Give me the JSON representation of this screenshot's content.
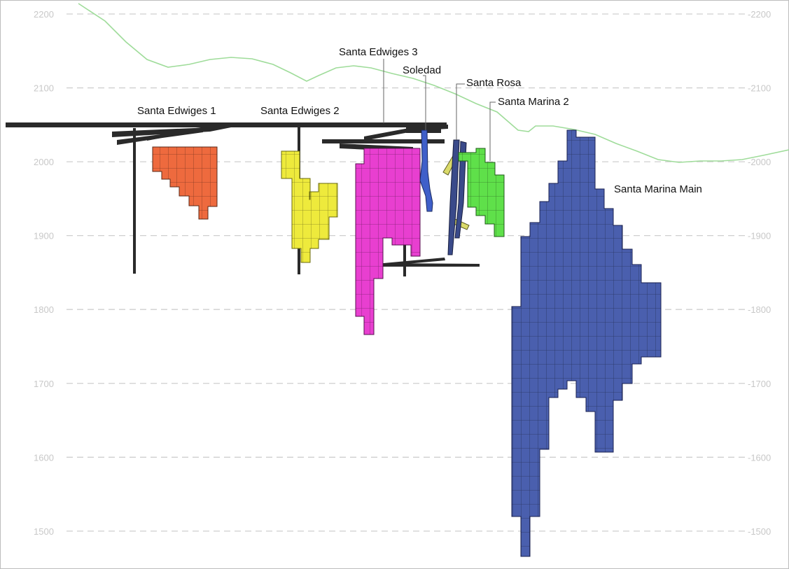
{
  "elevation_axis": {
    "ticks": [
      2200,
      2100,
      2000,
      1900,
      1800,
      1700,
      1600,
      1500
    ],
    "left_labels": [
      "2200",
      "2100",
      "2000",
      "1900",
      "1800",
      "1700",
      "1600",
      "1500"
    ],
    "right_labels": [
      "-2200",
      "-2100",
      "-2000",
      "-1900",
      "-1800",
      "-1700",
      "-1600",
      "-1500"
    ]
  },
  "zones": [
    {
      "name": "Santa Edwiges 1",
      "color": "#ee6a3e"
    },
    {
      "name": "Santa Edwiges 2",
      "color": "#eeea3c"
    },
    {
      "name": "Santa Edwiges 3",
      "color": "#e83fd0"
    },
    {
      "name": "Soledad",
      "color": "#3f5fc9"
    },
    {
      "name": "Santa Rosa",
      "color": "#dada6a"
    },
    {
      "name": "Santa Marina 2",
      "color": "#5fe04a"
    },
    {
      "name": "Santa Marina Main",
      "color": "#4a5fae"
    }
  ],
  "colors": {
    "topography": "#9fdc9a",
    "workings": "#2a2a2a",
    "grid": "#cfcfcf",
    "frame": "#bdbdbd"
  }
}
